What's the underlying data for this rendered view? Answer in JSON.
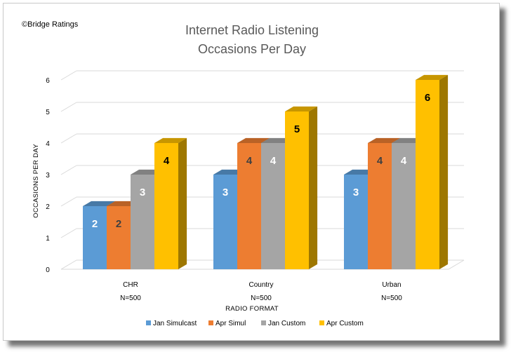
{
  "copyright": "©Bridge Ratings",
  "chart_data": {
    "type": "bar",
    "title": [
      "Internet Radio Listening",
      "Occasions Per Day"
    ],
    "categories": [
      "CHR",
      "Country",
      "Urban"
    ],
    "category_notes": [
      "N=500",
      "N=500",
      "N=500"
    ],
    "xlabel": "RADIO FORMAT",
    "ylabel": "OCCASIONS PER DAY",
    "ylim": [
      0,
      6
    ],
    "yticks": [
      0,
      1,
      2,
      3,
      4,
      5,
      6
    ],
    "grid": true,
    "legend_position": "bottom",
    "series": [
      {
        "name": "Jan Simulcast",
        "values": [
          2,
          3,
          3
        ],
        "color": "#5b9bd5",
        "label_color": "#ffffff"
      },
      {
        "name": "Apr Simul",
        "values": [
          2,
          4,
          4
        ],
        "color": "#ed7d31",
        "label_color": "#404040"
      },
      {
        "name": "Jan Custom",
        "values": [
          3,
          4,
          4
        ],
        "color": "#a5a5a5",
        "label_color": "#ffffff"
      },
      {
        "name": "Apr Custom",
        "values": [
          4,
          5,
          6
        ],
        "color": "#ffc000",
        "label_color": "#000000"
      }
    ]
  }
}
